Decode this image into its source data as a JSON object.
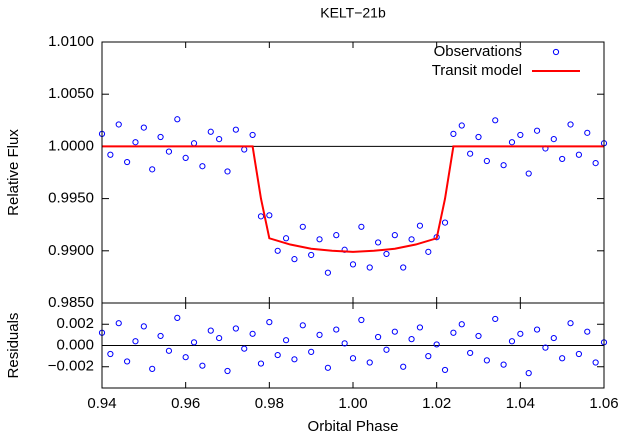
{
  "chart_data": [
    {
      "type": "scatter",
      "title": "KELT−21b",
      "ylabel": "Relative Flux",
      "ylim": [
        0.985,
        1.01
      ],
      "yticks": [
        {
          "value": 0.985,
          "label": "0.9850"
        },
        {
          "value": 0.99,
          "label": "0.9900"
        },
        {
          "value": 0.995,
          "label": "0.9950"
        },
        {
          "value": 1.0,
          "label": "1.0000"
        },
        {
          "value": 1.005,
          "label": "1.0050"
        },
        {
          "value": 1.01,
          "label": "1.0100"
        }
      ],
      "hline": 1.0,
      "legend": "upper right",
      "grid": false,
      "series": [
        {
          "name": "Observations",
          "color": "#0000ff",
          "marker": "circle",
          "x": [
            0.94,
            0.942,
            0.944,
            0.946,
            0.948,
            0.95,
            0.952,
            0.954,
            0.956,
            0.958,
            0.96,
            0.962,
            0.964,
            0.966,
            0.968,
            0.97,
            0.972,
            0.974,
            0.976,
            0.978,
            0.98,
            0.982,
            0.984,
            0.986,
            0.988,
            0.99,
            0.992,
            0.994,
            0.996,
            0.998,
            1.0,
            1.002,
            1.004,
            1.006,
            1.008,
            1.01,
            1.012,
            1.014,
            1.016,
            1.018,
            1.02,
            1.022,
            1.024,
            1.026,
            1.028,
            1.03,
            1.032,
            1.034,
            1.036,
            1.038,
            1.04,
            1.042,
            1.044,
            1.046,
            1.048,
            1.05,
            1.052,
            1.054,
            1.056,
            1.058,
            1.06
          ],
          "values": [
            1.0012,
            0.9992,
            1.0021,
            0.9985,
            1.0004,
            1.0018,
            0.9978,
            1.0009,
            0.9995,
            1.0026,
            0.9989,
            1.0003,
            0.9981,
            1.0014,
            1.0007,
            0.9976,
            1.0016,
            0.9997,
            1.0011,
            0.9933,
            0.9934,
            0.99,
            0.9912,
            0.9892,
            0.9923,
            0.9896,
            0.9911,
            0.9879,
            0.9915,
            0.9901,
            0.9887,
            0.9923,
            0.9884,
            0.9908,
            0.9897,
            0.9915,
            0.9884,
            0.9911,
            0.9924,
            0.9899,
            0.9913,
            0.9927,
            1.0012,
            1.002,
            0.9993,
            1.0009,
            0.9986,
            1.0025,
            0.9982,
            1.0004,
            1.0011,
            0.9974,
            1.0015,
            0.9998,
            1.0007,
            0.9988,
            1.0021,
            0.9992,
            1.0013,
            0.9984,
            1.0003
          ]
        },
        {
          "name": "Transit model",
          "type": "line",
          "color": "#ff0000",
          "x": [
            0.94,
            0.976,
            0.978,
            0.98,
            0.985,
            0.99,
            0.995,
            1.0,
            1.005,
            1.01,
            1.015,
            1.02,
            1.022,
            1.024,
            1.06
          ],
          "values": [
            1.0,
            1.0,
            0.995,
            0.9912,
            0.9906,
            0.9902,
            0.99,
            0.9899,
            0.99,
            0.9902,
            0.9906,
            0.9912,
            0.995,
            1.0,
            1.0
          ]
        }
      ]
    },
    {
      "type": "scatter",
      "ylabel": "Residuals",
      "xlabel": "Orbital Phase",
      "xlim": [
        0.94,
        1.06
      ],
      "xticks": [
        0.94,
        0.96,
        0.98,
        {
          "value": 1.0,
          "label": "1.00"
        },
        1.02,
        1.04,
        1.06
      ],
      "ylim": [
        -0.004,
        0.004
      ],
      "yticks": [
        {
          "value": -0.002,
          "label": "−0.002"
        },
        {
          "value": 0,
          "label": "0.000"
        },
        0.002
      ],
      "hline": 0,
      "grid": false,
      "series": [
        {
          "name": "Residuals",
          "color": "#0000ff",
          "marker": "circle",
          "x": [
            0.94,
            0.942,
            0.944,
            0.946,
            0.948,
            0.95,
            0.952,
            0.954,
            0.956,
            0.958,
            0.96,
            0.962,
            0.964,
            0.966,
            0.968,
            0.97,
            0.972,
            0.974,
            0.976,
            0.978,
            0.98,
            0.982,
            0.984,
            0.986,
            0.988,
            0.99,
            0.992,
            0.994,
            0.996,
            0.998,
            1.0,
            1.002,
            1.004,
            1.006,
            1.008,
            1.01,
            1.012,
            1.014,
            1.016,
            1.018,
            1.02,
            1.022,
            1.024,
            1.026,
            1.028,
            1.03,
            1.032,
            1.034,
            1.036,
            1.038,
            1.04,
            1.042,
            1.044,
            1.046,
            1.048,
            1.05,
            1.052,
            1.054,
            1.056,
            1.058,
            1.06
          ],
          "values": [
            0.0012,
            -0.0008,
            0.0021,
            -0.0015,
            0.0004,
            0.0018,
            -0.0022,
            0.0009,
            -0.0005,
            0.0026,
            -0.0011,
            0.0003,
            -0.0019,
            0.0014,
            0.0007,
            -0.0024,
            0.0016,
            -0.0003,
            0.0011,
            -0.0017,
            0.0022,
            -0.0009,
            0.0005,
            -0.0013,
            0.0019,
            -0.0006,
            0.001,
            -0.0021,
            0.0015,
            0.0002,
            -0.0012,
            0.0024,
            -0.0016,
            0.0008,
            -0.0004,
            0.0013,
            -0.002,
            0.0006,
            0.0017,
            -0.001,
            0.0001,
            -0.0023,
            0.0012,
            0.002,
            -0.0007,
            0.0009,
            -0.0014,
            0.0025,
            -0.0018,
            0.0004,
            0.0011,
            -0.0026,
            0.0015,
            -0.0002,
            0.0007,
            -0.0012,
            0.0021,
            -0.0008,
            0.0013,
            -0.0016,
            0.0003
          ]
        }
      ]
    }
  ]
}
